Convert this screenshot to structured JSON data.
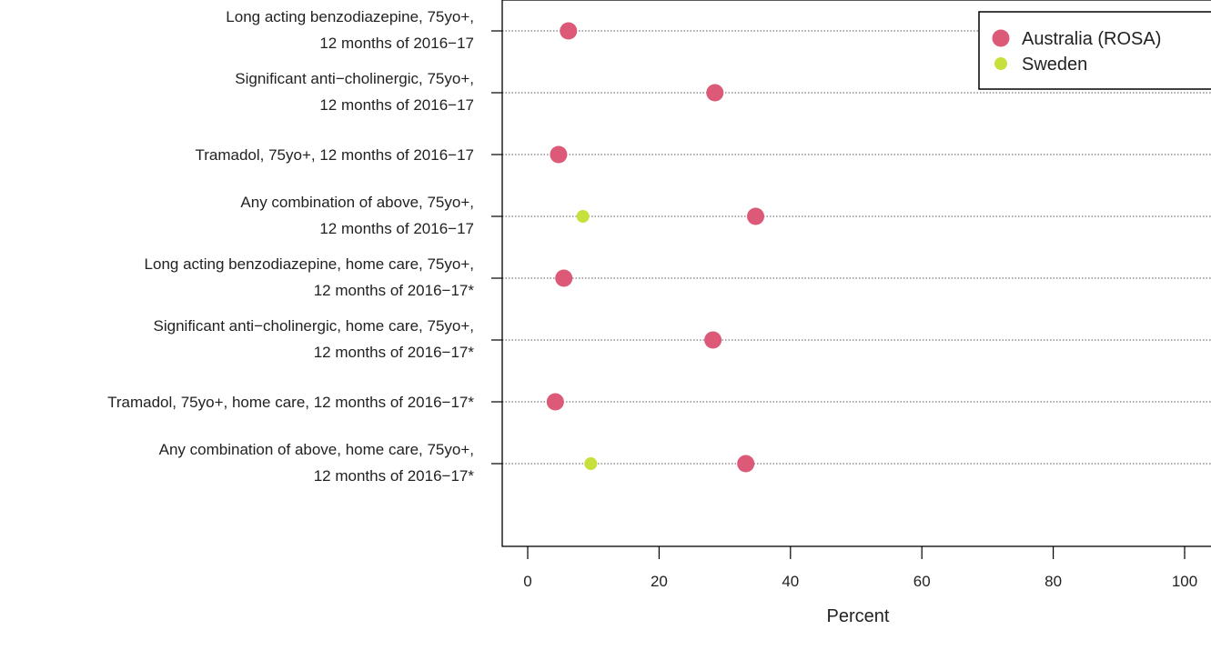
{
  "chart_data": {
    "type": "scatter",
    "categories": [
      [
        "Long acting benzodiazepine, 75yo+,",
        "12 months of 2016−17"
      ],
      [
        "Significant anti−cholinergic, 75yo+,",
        "12 months of 2016−17"
      ],
      [
        "Tramadol, 75yo+, 12 months of 2016−17"
      ],
      [
        "Any combination of above, 75yo+,",
        "12 months of 2016−17"
      ],
      [
        "Long acting benzodiazepine, home care, 75yo+,",
        "12 months of 2016−17*"
      ],
      [
        "Significant anti−cholinergic, home care, 75yo+,",
        "12 months of 2016−17*"
      ],
      [
        "Tramadol, 75yo+, home care, 12 months of 2016−17*"
      ],
      [
        "Any combination of above, home care, 75yo+,",
        "12 months of 2016−17*"
      ]
    ],
    "series": [
      {
        "name": "Australia (ROSA)",
        "color": "#dc5a78",
        "values": [
          6.2,
          28.5,
          4.7,
          34.7,
          5.5,
          28.2,
          4.2,
          33.2
        ]
      },
      {
        "name": "Sweden",
        "color": "#c8e03c",
        "values": [
          null,
          null,
          null,
          8.4,
          null,
          null,
          null,
          9.6
        ]
      }
    ],
    "xlabel": "Percent",
    "xlim": [
      -4,
      104
    ],
    "xticks": [
      0,
      20,
      40,
      60,
      80,
      100
    ],
    "grid": "horizontal-dotted",
    "legend_position": "top-right"
  }
}
